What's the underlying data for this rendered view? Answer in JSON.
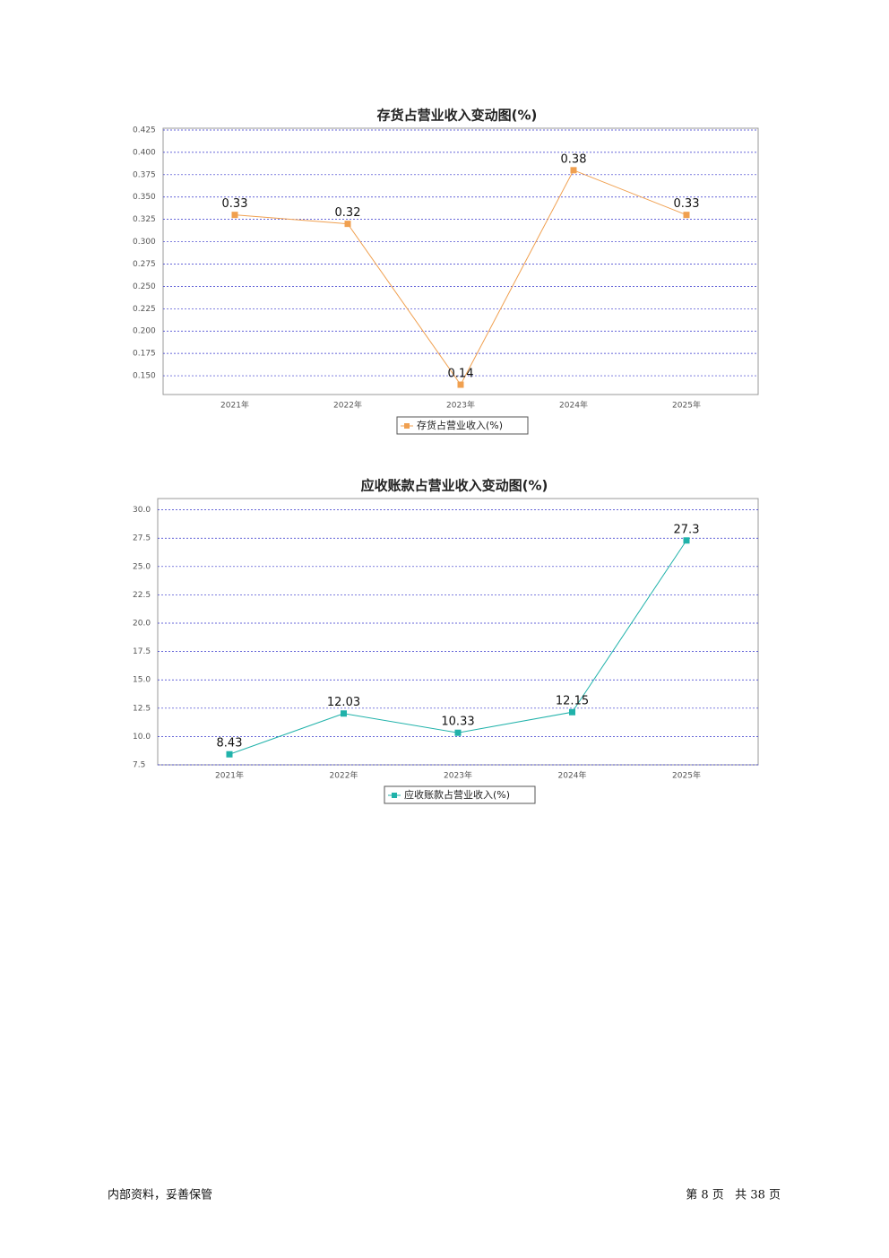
{
  "chart_data": [
    {
      "type": "line",
      "title": "存货占营业收入变动图(%)",
      "categories": [
        "2021年",
        "2022年",
        "2023年",
        "2024年",
        "2025年"
      ],
      "series": [
        {
          "name": "存货占营业收入(%)",
          "color": "#f0a050",
          "values": [
            0.33,
            0.32,
            0.14,
            0.38,
            0.33
          ]
        }
      ],
      "ylim": [
        0.129,
        0.427
      ],
      "yticks": [
        {
          "value": 0.15,
          "label": "0.150"
        },
        {
          "value": 0.175,
          "label": "0.175"
        },
        {
          "value": 0.2,
          "label": "0.200"
        },
        {
          "value": 0.225,
          "label": "0.225"
        },
        {
          "value": 0.25,
          "label": "0.250"
        },
        {
          "value": 0.275,
          "label": "0.275"
        },
        {
          "value": 0.3,
          "label": "0.300"
        },
        {
          "value": 0.325,
          "label": "0.325"
        },
        {
          "value": 0.35,
          "label": "0.350"
        },
        {
          "value": 0.375,
          "label": "0.375"
        },
        {
          "value": 0.4,
          "label": "0.400"
        },
        {
          "value": 0.425,
          "label": "0.425"
        }
      ],
      "grid": true,
      "legend": "bottom"
    },
    {
      "type": "line",
      "title": "应收账款占营业收入变动图(%)",
      "categories": [
        "2021年",
        "2022年",
        "2023年",
        "2024年",
        "2025年"
      ],
      "series": [
        {
          "name": "应收账款占营业收入(%)",
          "color": "#20b2aa",
          "values": [
            8.43,
            12.03,
            10.33,
            12.15,
            27.3
          ]
        }
      ],
      "ylim": [
        7.5,
        31.0
      ],
      "yticks": [
        7.5,
        {
          "value": 10,
          "label": "10.0"
        },
        12.5,
        {
          "value": 15,
          "label": "15.0"
        },
        17.5,
        {
          "value": 20,
          "label": "20.0"
        },
        22.5,
        {
          "value": 25,
          "label": "25.0"
        },
        27.5,
        {
          "value": 30,
          "label": "30.0"
        }
      ],
      "grid": true,
      "legend": "bottom"
    }
  ],
  "footer": {
    "left": "内部资料，妥善保管",
    "right": "第 8 页   共 38 页"
  }
}
